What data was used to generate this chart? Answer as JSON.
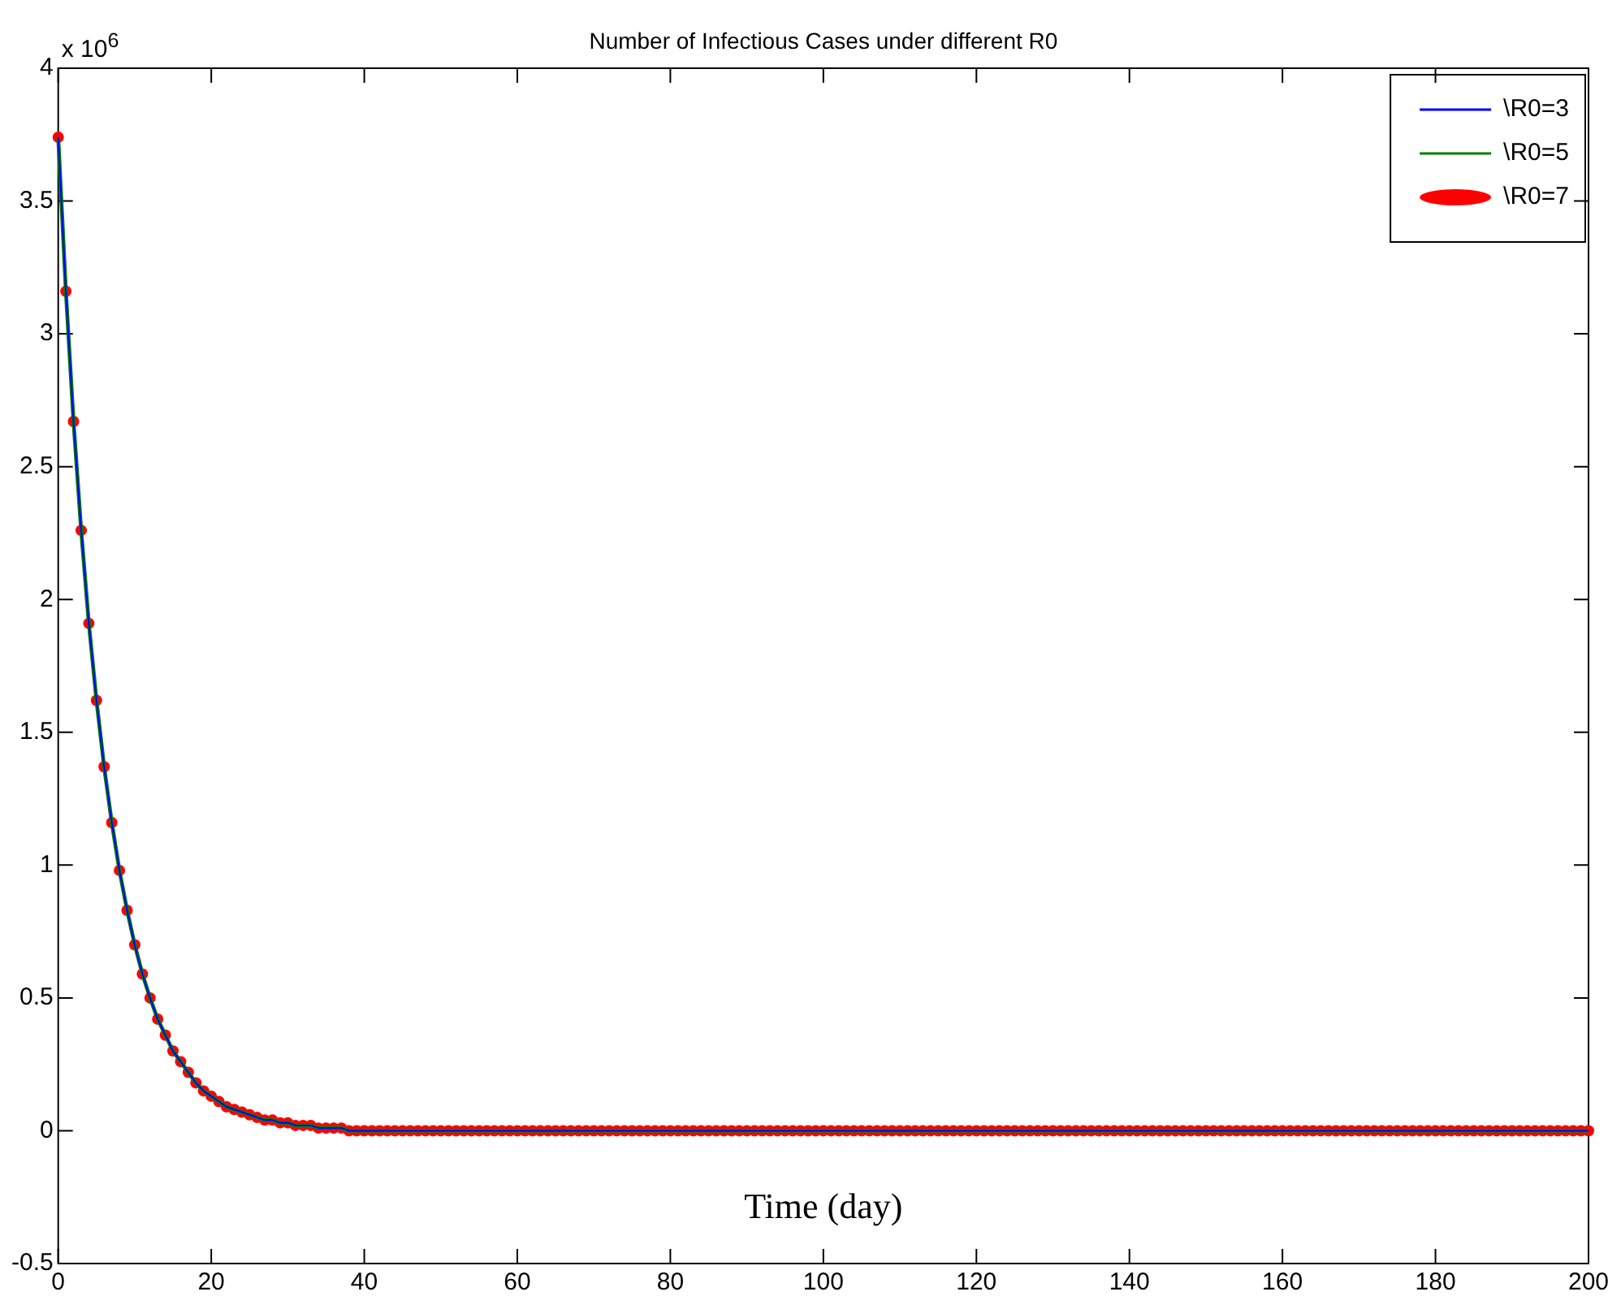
{
  "chart_data": {
    "type": "line",
    "title": "Number of Infectious Cases under different R0",
    "xlabel": "Time (day)",
    "annotations": [
      "x 10$^{6}$"
    ],
    "x": [
      0,
      1,
      2,
      3,
      4,
      5,
      6,
      7,
      8,
      9,
      10,
      11,
      12,
      13,
      14,
      15,
      16,
      17,
      18,
      19,
      20,
      21,
      22,
      23,
      24,
      25,
      26,
      27,
      28,
      29,
      30,
      31,
      32,
      33,
      34,
      35,
      36,
      37,
      38,
      39,
      40,
      41,
      42,
      43,
      44,
      45,
      46,
      47,
      48,
      49,
      50,
      51,
      52,
      53,
      54,
      55,
      56,
      57,
      58,
      59,
      60,
      61,
      62,
      63,
      64,
      65,
      66,
      67,
      68,
      69,
      70,
      71,
      72,
      73,
      74,
      75,
      76,
      77,
      78,
      79,
      80,
      81,
      82,
      83,
      84,
      85,
      86,
      87,
      88,
      89,
      90,
      91,
      92,
      93,
      94,
      95,
      96,
      97,
      98,
      99,
      100,
      101,
      102,
      103,
      104,
      105,
      106,
      107,
      108,
      109,
      110,
      111,
      112,
      113,
      114,
      115,
      116,
      117,
      118,
      119,
      120,
      121,
      122,
      123,
      124,
      125,
      126,
      127,
      128,
      129,
      130,
      131,
      132,
      133,
      134,
      135,
      136,
      137,
      138,
      139,
      140,
      141,
      142,
      143,
      144,
      145,
      146,
      147,
      148,
      149,
      150,
      151,
      152,
      153,
      154,
      155,
      156,
      157,
      158,
      159,
      160,
      161,
      162,
      163,
      164,
      165,
      166,
      167,
      168,
      169,
      170,
      171,
      172,
      173,
      174,
      175,
      176,
      177,
      178,
      179,
      180,
      181,
      182,
      183,
      184,
      185,
      186,
      187,
      188,
      189,
      190,
      191,
      192,
      193,
      194,
      195,
      196,
      197,
      198,
      199,
      200
    ],
    "series": [
      {
        "name": "\\R0=3",
        "color": "#0000ff",
        "marker": "none",
        "values": [
          3.74,
          3.16,
          2.67,
          2.26,
          1.91,
          1.62,
          1.37,
          1.16,
          0.98,
          0.83,
          0.7,
          0.59,
          0.5,
          0.42,
          0.36,
          0.3,
          0.26,
          0.22,
          0.18,
          0.15,
          0.13,
          0.11,
          0.09,
          0.08,
          0.07,
          0.06,
          0.05,
          0.04,
          0.04,
          0.03,
          0.03,
          0.02,
          0.02,
          0.02,
          0.01,
          0.01,
          0.01,
          0.01,
          0,
          0,
          0,
          0,
          0,
          0,
          0,
          0,
          0,
          0,
          0,
          0,
          0,
          0,
          0,
          0,
          0,
          0,
          0,
          0,
          0,
          0,
          0,
          0,
          0,
          0,
          0,
          0,
          0,
          0,
          0,
          0,
          0,
          0,
          0,
          0,
          0,
          0,
          0,
          0,
          0,
          0,
          0,
          0,
          0,
          0,
          0,
          0,
          0,
          0,
          0,
          0,
          0,
          0,
          0,
          0,
          0,
          0,
          0,
          0,
          0,
          0,
          0,
          0,
          0,
          0,
          0,
          0,
          0,
          0,
          0,
          0,
          0,
          0,
          0,
          0,
          0,
          0,
          0,
          0,
          0,
          0,
          0,
          0,
          0,
          0,
          0,
          0,
          0,
          0,
          0,
          0,
          0,
          0,
          0,
          0,
          0,
          0,
          0,
          0,
          0,
          0,
          0,
          0,
          0,
          0,
          0,
          0,
          0,
          0,
          0,
          0,
          0,
          0,
          0,
          0,
          0,
          0,
          0,
          0,
          0,
          0,
          0,
          0,
          0,
          0,
          0,
          0,
          0,
          0,
          0,
          0,
          0,
          0,
          0,
          0,
          0,
          0,
          0,
          0,
          0,
          0,
          0,
          0,
          0,
          0,
          0,
          0,
          0,
          0,
          0,
          0,
          0,
          0,
          0,
          0,
          0,
          0,
          0,
          0,
          0,
          0,
          0
        ]
      },
      {
        "name": "\\R0=5",
        "color": "#008000",
        "marker": "none",
        "values": [
          3.74,
          3.16,
          2.67,
          2.26,
          1.91,
          1.62,
          1.37,
          1.16,
          0.98,
          0.83,
          0.7,
          0.59,
          0.5,
          0.42,
          0.36,
          0.3,
          0.26,
          0.22,
          0.18,
          0.15,
          0.13,
          0.11,
          0.09,
          0.08,
          0.07,
          0.06,
          0.05,
          0.04,
          0.04,
          0.03,
          0.03,
          0.02,
          0.02,
          0.02,
          0.01,
          0.01,
          0.01,
          0.01,
          0,
          0,
          0,
          0,
          0,
          0,
          0,
          0,
          0,
          0,
          0,
          0,
          0,
          0,
          0,
          0,
          0,
          0,
          0,
          0,
          0,
          0,
          0,
          0,
          0,
          0,
          0,
          0,
          0,
          0,
          0,
          0,
          0,
          0,
          0,
          0,
          0,
          0,
          0,
          0,
          0,
          0,
          0,
          0,
          0,
          0,
          0,
          0,
          0,
          0,
          0,
          0,
          0,
          0,
          0,
          0,
          0,
          0,
          0,
          0,
          0,
          0,
          0,
          0,
          0,
          0,
          0,
          0,
          0,
          0,
          0,
          0,
          0,
          0,
          0,
          0,
          0,
          0,
          0,
          0,
          0,
          0,
          0,
          0,
          0,
          0,
          0,
          0,
          0,
          0,
          0,
          0,
          0,
          0,
          0,
          0,
          0,
          0,
          0,
          0,
          0,
          0,
          0,
          0,
          0,
          0,
          0,
          0,
          0,
          0,
          0,
          0,
          0,
          0,
          0,
          0,
          0,
          0,
          0,
          0,
          0,
          0,
          0,
          0,
          0,
          0,
          0,
          0,
          0,
          0,
          0,
          0,
          0,
          0,
          0,
          0,
          0,
          0,
          0,
          0,
          0,
          0,
          0,
          0,
          0,
          0,
          0,
          0,
          0,
          0,
          0,
          0,
          0,
          0,
          0,
          0,
          0,
          0,
          0,
          0,
          0,
          0,
          0
        ]
      },
      {
        "name": "\\R0=7",
        "color": "#ff0000",
        "type": "scatter",
        "marker": "circle",
        "values": [
          3.74,
          3.16,
          2.67,
          2.26,
          1.91,
          1.62,
          1.37,
          1.16,
          0.98,
          0.83,
          0.7,
          0.59,
          0.5,
          0.42,
          0.36,
          0.3,
          0.26,
          0.22,
          0.18,
          0.15,
          0.13,
          0.11,
          0.09,
          0.08,
          0.07,
          0.06,
          0.05,
          0.04,
          0.04,
          0.03,
          0.03,
          0.02,
          0.02,
          0.02,
          0.01,
          0.01,
          0.01,
          0.01,
          0,
          0,
          0,
          0,
          0,
          0,
          0,
          0,
          0,
          0,
          0,
          0,
          0,
          0,
          0,
          0,
          0,
          0,
          0,
          0,
          0,
          0,
          0,
          0,
          0,
          0,
          0,
          0,
          0,
          0,
          0,
          0,
          0,
          0,
          0,
          0,
          0,
          0,
          0,
          0,
          0,
          0,
          0,
          0,
          0,
          0,
          0,
          0,
          0,
          0,
          0,
          0,
          0,
          0,
          0,
          0,
          0,
          0,
          0,
          0,
          0,
          0,
          0,
          0,
          0,
          0,
          0,
          0,
          0,
          0,
          0,
          0,
          0,
          0,
          0,
          0,
          0,
          0,
          0,
          0,
          0,
          0,
          0,
          0,
          0,
          0,
          0,
          0,
          0,
          0,
          0,
          0,
          0,
          0,
          0,
          0,
          0,
          0,
          0,
          0,
          0,
          0,
          0,
          0,
          0,
          0,
          0,
          0,
          0,
          0,
          0,
          0,
          0,
          0,
          0,
          0,
          0,
          0,
          0,
          0,
          0,
          0,
          0,
          0,
          0,
          0,
          0,
          0,
          0,
          0,
          0,
          0,
          0,
          0,
          0,
          0,
          0,
          0,
          0,
          0,
          0,
          0,
          0,
          0,
          0,
          0,
          0,
          0,
          0,
          0,
          0,
          0,
          0,
          0,
          0,
          0,
          0,
          0,
          0,
          0,
          0,
          0,
          0
        ]
      }
    ],
    "xlim": [
      0,
      200
    ],
    "xticks": [
      0,
      20,
      40,
      60,
      80,
      100,
      120,
      140,
      160,
      180,
      200
    ],
    "ylim": [
      -0.5,
      4
    ],
    "yticks": [
      -0.5,
      0,
      0.5,
      1,
      1.5,
      2,
      2.5,
      3,
      3.5,
      4
    ],
    "legend": "top right"
  }
}
